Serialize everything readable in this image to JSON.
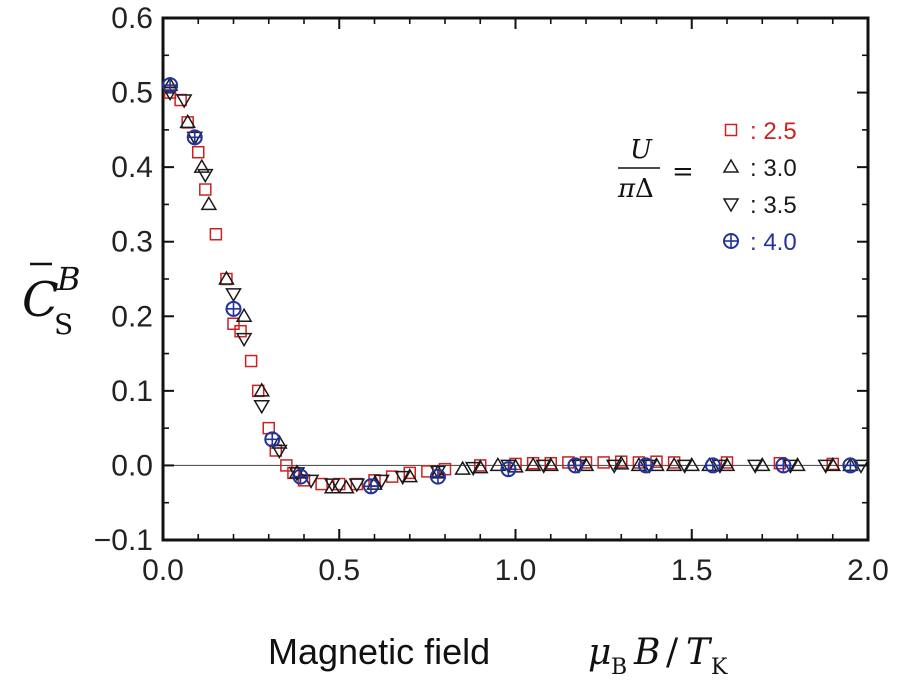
{
  "chart_data": {
    "type": "scatter",
    "xlabel": {
      "text": "Magnetic field",
      "math": "μB B / TK"
    },
    "ylabel": {
      "math": "C̄S B"
    },
    "xlim": [
      0.0,
      2.0
    ],
    "ylim": [
      -0.1,
      0.6
    ],
    "xticks": [
      "0.0",
      "0.5",
      "1.0",
      "1.5",
      "2.0"
    ],
    "yticks": [
      "−0.1",
      "0.0",
      "0.1",
      "0.2",
      "0.3",
      "0.4",
      "0.5",
      "0.6"
    ],
    "zero_line": true,
    "legend": {
      "title": "U/πΔ =",
      "position": "top-right"
    },
    "series": [
      {
        "name": "2.5",
        "label": ": 2.5",
        "marker": "square",
        "color": "#cc2222",
        "x": [
          0.02,
          0.05,
          0.07,
          0.1,
          0.12,
          0.15,
          0.18,
          0.2,
          0.22,
          0.25,
          0.27,
          0.3,
          0.32,
          0.35,
          0.37,
          0.4,
          0.45,
          0.5,
          0.55,
          0.6,
          0.65,
          0.7,
          0.75,
          0.8,
          0.9,
          1.0,
          1.05,
          1.1,
          1.15,
          1.2,
          1.25,
          1.3,
          1.35,
          1.4,
          1.45,
          1.6,
          1.75,
          1.9
        ],
        "y": [
          0.5,
          0.49,
          0.46,
          0.42,
          0.37,
          0.31,
          0.25,
          0.19,
          0.18,
          0.14,
          0.1,
          0.05,
          0.02,
          0.0,
          -0.01,
          -0.02,
          -0.025,
          -0.025,
          -0.025,
          -0.02,
          -0.015,
          -0.01,
          -0.008,
          -0.005,
          0.0,
          0.002,
          0.003,
          0.003,
          0.004,
          0.004,
          0.004,
          0.005,
          0.004,
          0.005,
          0.004,
          0.004,
          0.003,
          0.002
        ]
      },
      {
        "name": "3.0",
        "label": ": 3.0",
        "marker": "triangle-up",
        "color": "#1a1a1a",
        "x": [
          0.02,
          0.07,
          0.11,
          0.13,
          0.18,
          0.23,
          0.28,
          0.33,
          0.38,
          0.48,
          0.52,
          0.6,
          0.7,
          0.78,
          0.85,
          0.9,
          0.95,
          1.0,
          1.05,
          1.1,
          1.2,
          1.3,
          1.35,
          1.4,
          1.45,
          1.5,
          1.55,
          1.6,
          1.7,
          1.8,
          1.9,
          1.95
        ],
        "y": [
          0.51,
          0.46,
          0.4,
          0.35,
          0.25,
          0.2,
          0.1,
          0.03,
          -0.01,
          -0.03,
          -0.03,
          -0.025,
          -0.015,
          -0.01,
          -0.005,
          -0.003,
          0.0,
          -0.002,
          0.0,
          0.0,
          0.0,
          0.002,
          0.0,
          0.0,
          0.0,
          0.0,
          0.0,
          0.0,
          0.0,
          0.0,
          0.0,
          0.0
        ]
      },
      {
        "name": "3.5",
        "label": ": 3.5",
        "marker": "triangle-down",
        "color": "#1a1a1a",
        "x": [
          0.02,
          0.06,
          0.09,
          0.12,
          0.2,
          0.23,
          0.28,
          0.33,
          0.38,
          0.42,
          0.48,
          0.55,
          0.62,
          0.68,
          0.78,
          0.88,
          0.98,
          1.08,
          1.18,
          1.28,
          1.38,
          1.48,
          1.58,
          1.68,
          1.78,
          1.88,
          1.98
        ],
        "y": [
          0.5,
          0.49,
          0.44,
          0.39,
          0.23,
          0.17,
          0.08,
          0.02,
          -0.01,
          -0.02,
          -0.025,
          -0.025,
          -0.02,
          -0.015,
          -0.008,
          -0.003,
          0.0,
          0.0,
          0.0,
          0.0,
          0.0,
          0.0,
          0.0,
          0.0,
          0.0,
          0.0,
          0.0
        ]
      },
      {
        "name": "4.0",
        "label": ": 4.0",
        "marker": "circle-plus",
        "color": "#22339a",
        "x": [
          0.02,
          0.09,
          0.2,
          0.31,
          0.39,
          0.59,
          0.78,
          0.98,
          1.17,
          1.37,
          1.56,
          1.76,
          1.95
        ],
        "y": [
          0.51,
          0.44,
          0.21,
          0.035,
          -0.015,
          -0.028,
          -0.015,
          -0.005,
          0.0,
          0.0,
          0.0,
          0.0,
          0.0
        ]
      }
    ]
  }
}
